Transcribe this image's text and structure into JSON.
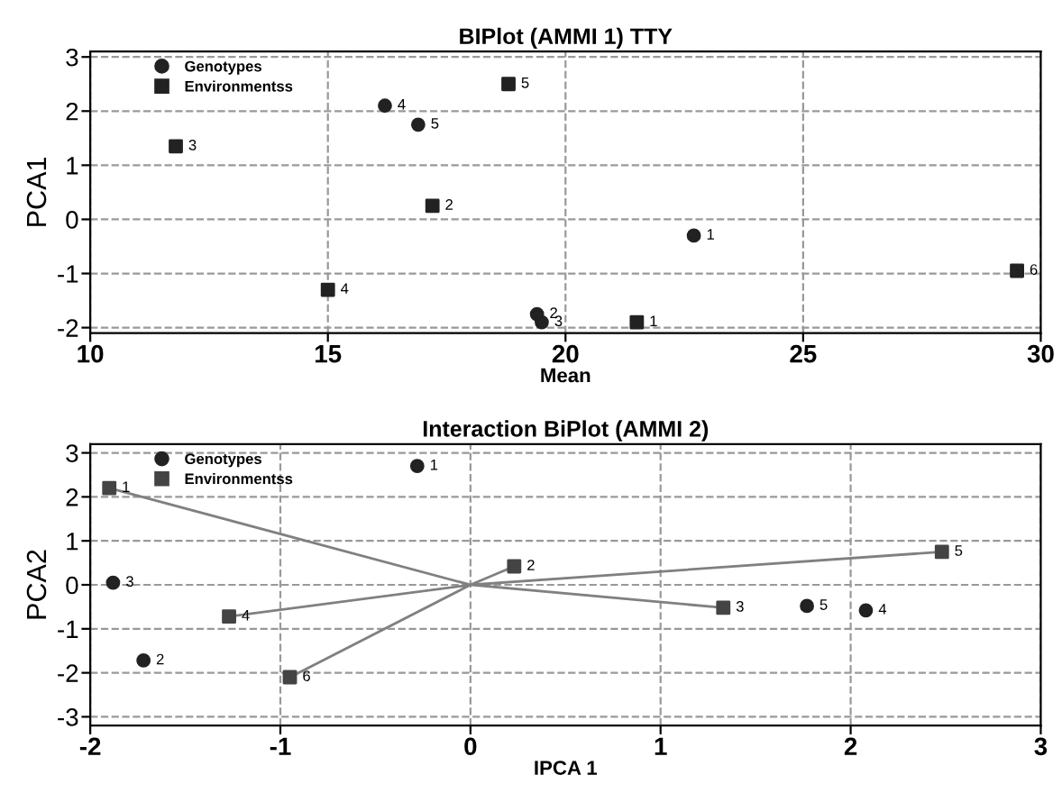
{
  "chart_data": [
    {
      "type": "scatter",
      "title": "BIPlot (AMMI 1) TTY",
      "xlabel": "Mean",
      "ylabel": "PCA1",
      "xlim": [
        10,
        30
      ],
      "xticks": [
        10,
        15,
        20,
        25,
        30
      ],
      "ylim": [
        -2.1,
        3.1
      ],
      "yticks": [
        -2,
        -1,
        0,
        1,
        2,
        3
      ],
      "grid": true,
      "legend": "top left",
      "series": [
        {
          "name": "Genotypes",
          "color": "#222222",
          "marker": "circle",
          "x": [
            22.7,
            19.4,
            19.5,
            16.2,
            16.9
          ],
          "values": [
            -0.3,
            -1.75,
            -1.9,
            2.1,
            1.75
          ]
        },
        {
          "name": "Environmentss",
          "color": "#222222",
          "marker": "square",
          "x": [
            21.5,
            17.2,
            11.8,
            15.0,
            18.8,
            29.5
          ],
          "values": [
            -1.9,
            0.25,
            1.35,
            -1.3,
            2.5,
            -0.95
          ]
        }
      ],
      "annotations": [
        {
          "text": "1",
          "x": 22.7,
          "y": -0.3
        },
        {
          "text": "2",
          "x": 19.4,
          "y": -1.75
        },
        {
          "text": "3",
          "x": 19.5,
          "y": -1.9
        },
        {
          "text": "4",
          "x": 16.2,
          "y": 2.1
        },
        {
          "text": "5",
          "x": 16.9,
          "y": 1.75
        },
        {
          "text": "1",
          "x": 21.5,
          "y": -1.9
        },
        {
          "text": "2",
          "x": 17.2,
          "y": 0.25
        },
        {
          "text": "3",
          "x": 11.8,
          "y": 1.35
        },
        {
          "text": "4",
          "x": 15.0,
          "y": -1.3
        },
        {
          "text": "5",
          "x": 18.8,
          "y": 2.5
        },
        {
          "text": "6",
          "x": 29.5,
          "y": -0.95
        }
      ]
    },
    {
      "type": "scatter",
      "title": "Interaction BiPlot (AMMI 2)",
      "xlabel": "IPCA 1",
      "ylabel": "PCA2",
      "xlim": [
        -2,
        3
      ],
      "xticks": [
        -2,
        -1,
        0,
        1,
        2,
        3
      ],
      "ylim": [
        -3.2,
        3.2
      ],
      "yticks": [
        -3,
        -2,
        -1,
        0,
        1,
        2,
        3
      ],
      "grid": true,
      "legend": "top left",
      "series": [
        {
          "type": "line",
          "color": "#808080",
          "marker": "none",
          "x": [
            0,
            -1.9,
            null,
            0,
            0.23,
            null,
            0,
            1.33,
            null,
            0,
            -1.27,
            null,
            0,
            2.48,
            null,
            0,
            -0.95
          ],
          "values": [
            0,
            2.2,
            null,
            0,
            0.42,
            null,
            0,
            -0.52,
            null,
            0,
            -0.72,
            null,
            0,
            0.75,
            null,
            0,
            -2.1
          ]
        },
        {
          "name": "Genotypes",
          "color": "#222222",
          "marker": "circle",
          "x": [
            -0.28,
            -1.72,
            -1.88,
            2.08,
            1.77
          ],
          "values": [
            2.7,
            -1.72,
            0.05,
            -0.58,
            -0.48
          ]
        },
        {
          "name": "Environmentss",
          "color": "#444444",
          "marker": "square",
          "x": [
            -1.9,
            0.23,
            1.33,
            -1.27,
            2.48,
            -0.95
          ],
          "values": [
            2.2,
            0.42,
            -0.52,
            -0.72,
            0.75,
            -2.1
          ]
        }
      ],
      "annotations": [
        {
          "text": "1",
          "x": -0.28,
          "y": 2.7
        },
        {
          "text": "2",
          "x": -1.72,
          "y": -1.72
        },
        {
          "text": "3",
          "x": -1.88,
          "y": 0.05
        },
        {
          "text": "4",
          "x": 2.08,
          "y": -0.58
        },
        {
          "text": "5",
          "x": 1.77,
          "y": -0.48
        },
        {
          "text": "1",
          "x": -1.9,
          "y": 2.2
        },
        {
          "text": "2",
          "x": 0.23,
          "y": 0.42
        },
        {
          "text": "3",
          "x": 1.33,
          "y": -0.52
        },
        {
          "text": "4",
          "x": -1.27,
          "y": -0.72
        },
        {
          "text": "5",
          "x": 2.48,
          "y": 0.75
        },
        {
          "text": "6",
          "x": -0.95,
          "y": -2.1
        }
      ]
    }
  ]
}
